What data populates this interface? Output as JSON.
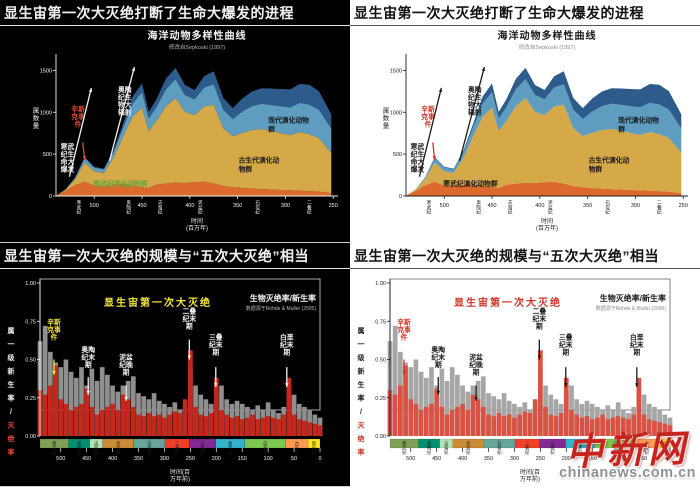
{
  "titles": {
    "top": "显生宙第一次大灭绝打断了生命大爆发的进程",
    "bottom": "显生宙第一次大灭绝的规模与“五次大灭绝”相当"
  },
  "watermark": {
    "logo": "中新网",
    "url": "chinanews.com.cn"
  },
  "themes": {
    "dark": {
      "bg": "#000000",
      "fg": "#f2f2f2",
      "muted": "#b8b8b8",
      "red": "#e2483a",
      "highlight": "#f2e33c",
      "green": "#63a83e",
      "ink": "#1a1a1a",
      "bar_grey": "#8f8f8f",
      "bar_red": "#c4271b",
      "frame": "#d0d0d0"
    },
    "light": {
      "bg": "#ffffff",
      "fg": "#1a1a1a",
      "muted": "#8a8a8a",
      "red": "#d03425",
      "highlight": "#d03425",
      "green": "#1a1a1a",
      "ink": "#1a1a1a",
      "bar_grey": "#a6a6a6",
      "bar_red": "#d85343",
      "frame": "#666666"
    }
  },
  "chart_data": [
    {
      "type": "area",
      "title": "海洋动物多样性曲线",
      "subtitle": "修改自Sepkoski (1997)",
      "ylabel": "属数量",
      "xlabel_lines": [
        "时间",
        "(百万年)"
      ],
      "xlim": [
        540,
        245
      ],
      "ylim": [
        0,
        1600
      ],
      "y_ticks": [
        0,
        500,
        1000,
        1500
      ],
      "x_ticks": [
        500,
        450,
        400,
        350,
        300,
        250
      ],
      "x_periods": [
        {
          "name": "寒武纪",
          "mid": 516
        },
        {
          "name": "奥陶纪",
          "mid": 464
        },
        {
          "name": "志留纪",
          "mid": 431
        },
        {
          "name": "泥盆纪",
          "mid": 389
        },
        {
          "name": "石炭纪",
          "mid": 329
        },
        {
          "name": "二叠纪",
          "mid": 275
        }
      ],
      "x": [
        540,
        530,
        520,
        510,
        500,
        490,
        480,
        470,
        460,
        450,
        443,
        435,
        425,
        415,
        405,
        395,
        385,
        375,
        365,
        355,
        345,
        335,
        325,
        315,
        305,
        295,
        285,
        275,
        265,
        252
      ],
      "series": [
        {
          "name": "寒武纪演化动物群",
          "color": "#dc6a2c",
          "values": [
            5,
            60,
            130,
            170,
            125,
            115,
            135,
            145,
            125,
            105,
            95,
            135,
            150,
            160,
            155,
            165,
            170,
            150,
            120,
            105,
            95,
            88,
            82,
            78,
            72,
            68,
            62,
            58,
            52,
            35
          ]
        },
        {
          "name": "古生代演化动物群",
          "color": "#d5a848",
          "values": [
            0,
            15,
            70,
            230,
            170,
            160,
            320,
            560,
            820,
            950,
            680,
            760,
            920,
            1010,
            850,
            800,
            900,
            940,
            690,
            610,
            660,
            700,
            720,
            700,
            680,
            660,
            700,
            680,
            640,
            480
          ]
        },
        {
          "name": "现代演化动物群(浅)",
          "color": "#5e9cc0",
          "values": [
            0,
            4,
            18,
            55,
            45,
            42,
            65,
            105,
            155,
            185,
            150,
            165,
            205,
            225,
            200,
            190,
            225,
            245,
            220,
            205,
            255,
            285,
            300,
            310,
            320,
            330,
            350,
            355,
            340,
            290
          ]
        },
        {
          "name": "现代演化动物群(深)",
          "color": "#2d5c8c",
          "values": [
            0,
            0,
            4,
            10,
            10,
            10,
            22,
            45,
            85,
            105,
            80,
            95,
            125,
            135,
            120,
            110,
            135,
            155,
            140,
            130,
            155,
            175,
            185,
            195,
            205,
            215,
            225,
            235,
            220,
            170
          ]
        }
      ],
      "annotations": [
        {
          "rows": [
            "辛斯",
            "克事",
            "件"
          ],
          "x": 517,
          "y": 1010,
          "color": "red",
          "arrow": {
            "x1": 512,
            "y1": 640,
            "x2": 510,
            "y2": 430
          }
        },
        {
          "rows": [
            "奥陶",
            "纪生",
            "物大",
            "辐射"
          ],
          "x": 468,
          "y": 1240,
          "color": "fg",
          "arrow": {
            "x1": 484,
            "y1": 420,
            "x2": 458,
            "y2": 1540
          }
        },
        {
          "rows": [
            "寒武",
            "纪生",
            "命大",
            "爆发"
          ],
          "x": 528,
          "y": 560,
          "color": "fg",
          "arrow": {
            "x1": 526,
            "y1": 230,
            "x2": 503,
            "y2": 1290
          }
        },
        {
          "text": "寒武纪演化动物群",
          "x": 501,
          "y": 120,
          "color": "green",
          "anchor": "start"
        },
        {
          "rows": [
            "古生代演化动",
            "物群"
          ],
          "x": 349,
          "y": 400,
          "color": "ink",
          "anchor": "start",
          "dy": 9
        },
        {
          "rows": [
            "现代演化动物",
            "群"
          ],
          "x": 318,
          "y": 880,
          "color": "ink",
          "anchor": "start",
          "dy": 9
        }
      ]
    },
    {
      "type": "bar",
      "title": "显生宙第一次大灭绝",
      "legend_title": "生物灭绝率/新生率",
      "legend_subtitle": "数据源于Rohde & Muller (2005)",
      "ylabel_main": "属一级新生率",
      "ylabel_red": "灭绝率",
      "xlabel_lines": [
        "时间(百",
        "万年前)"
      ],
      "xlim": [
        540,
        0
      ],
      "ylim": [
        0,
        1.05
      ],
      "reference_line": 0.17,
      "y_ticks": [
        {
          "label": "1.00",
          "v": 1
        },
        {
          "label": "0.75",
          "v": 0.75
        },
        {
          "label": "0.50",
          "v": 0.5
        },
        {
          "label": "0.25",
          "v": 0.25
        },
        {
          "label": "0.00",
          "v": 0
        }
      ],
      "x_ticks": [
        500,
        450,
        400,
        350,
        300,
        250,
        200,
        150,
        100,
        50,
        0
      ],
      "x": [
        540,
        530,
        520,
        510,
        500,
        490,
        480,
        470,
        460,
        450,
        440,
        430,
        420,
        410,
        400,
        390,
        380,
        370,
        360,
        350,
        340,
        330,
        320,
        310,
        300,
        290,
        280,
        270,
        260,
        250,
        240,
        230,
        220,
        210,
        200,
        190,
        180,
        170,
        160,
        150,
        140,
        130,
        120,
        110,
        100,
        90,
        80,
        70,
        60,
        50,
        40,
        30,
        20,
        10,
        0
      ],
      "series": [
        {
          "name": "新生率",
          "color_key": "bar_grey",
          "values": [
            0.62,
            0.72,
            0.55,
            0.48,
            0.45,
            0.5,
            0.42,
            0.38,
            0.45,
            0.33,
            0.44,
            0.36,
            0.45,
            0.4,
            0.33,
            0.29,
            0.33,
            0.36,
            0.39,
            0.28,
            0.26,
            0.24,
            0.28,
            0.23,
            0.21,
            0.19,
            0.22,
            0.17,
            0.2,
            0.44,
            0.33,
            0.27,
            0.24,
            0.21,
            0.29,
            0.33,
            0.24,
            0.21,
            0.23,
            0.21,
            0.19,
            0.17,
            0.2,
            0.17,
            0.22,
            0.17,
            0.15,
            0.19,
            0.33,
            0.27,
            0.21,
            0.19,
            0.17,
            0.14,
            0.12
          ]
        },
        {
          "name": "灭绝率",
          "color_key": "bar_red",
          "values": [
            0.3,
            0.27,
            0.33,
            0.46,
            0.24,
            0.21,
            0.17,
            0.19,
            0.21,
            0.31,
            0.19,
            0.14,
            0.17,
            0.19,
            0.21,
            0.17,
            0.27,
            0.24,
            0.19,
            0.14,
            0.13,
            0.15,
            0.13,
            0.14,
            0.12,
            0.14,
            0.16,
            0.15,
            0.24,
            0.56,
            0.19,
            0.14,
            0.13,
            0.15,
            0.38,
            0.17,
            0.14,
            0.12,
            0.13,
            0.11,
            0.12,
            0.14,
            0.11,
            0.12,
            0.13,
            0.12,
            0.11,
            0.14,
            0.38,
            0.14,
            0.11,
            0.1,
            0.09,
            0.08,
            0.07
          ]
        }
      ],
      "periods": [
        {
          "name": "寒武纪",
          "from": 541,
          "to": 485,
          "color": "#7FA056"
        },
        {
          "name": "奥陶纪",
          "from": 485,
          "to": 444,
          "color": "#009270"
        },
        {
          "name": "志留纪",
          "from": 444,
          "to": 419,
          "color": "#B3E1B6"
        },
        {
          "name": "泥盆纪",
          "from": 419,
          "to": 359,
          "color": "#CB8C37"
        },
        {
          "name": "石炭纪",
          "from": 359,
          "to": 299,
          "color": "#67A599"
        },
        {
          "name": "二叠纪",
          "from": 299,
          "to": 252,
          "color": "#F04028"
        },
        {
          "name": "三叠纪",
          "from": 252,
          "to": 201,
          "color": "#812B92"
        },
        {
          "name": "侏罗纪",
          "from": 201,
          "to": 145,
          "color": "#34B2C9"
        },
        {
          "name": "白垩纪",
          "from": 145,
          "to": 66,
          "color": "#7FC64E"
        },
        {
          "name": "古近纪",
          "from": 66,
          "to": 23,
          "color": "#FD9A52"
        },
        {
          "name": "新近纪",
          "from": 23,
          "to": 0,
          "color": "#FFE619"
        }
      ],
      "annotations": [
        {
          "rows": [
            "辛斯",
            "克事",
            "件"
          ],
          "x": 513,
          "y": 0.73,
          "color": "highlight",
          "arrow": {
            "x1": 513,
            "y1": 0.5,
            "x2": 513,
            "y2": 0.4
          }
        },
        {
          "rows": [
            "奥陶",
            "纪末",
            "期"
          ],
          "x": 447,
          "y": 0.55,
          "color": "fg",
          "arrow": {
            "x1": 447,
            "y1": 0.385,
            "x2": 447,
            "y2": 0.27
          }
        },
        {
          "rows": [
            "泥盆",
            "纪晚",
            "期"
          ],
          "x": 374,
          "y": 0.5,
          "color": "fg",
          "arrow": {
            "x1": 374,
            "y1": 0.33,
            "x2": 374,
            "y2": 0.23
          }
        },
        {
          "rows": [
            "二叠",
            "纪末",
            "期"
          ],
          "x": 252,
          "y": 0.8,
          "color": "fg",
          "arrow": {
            "x1": 252,
            "y1": 0.63,
            "x2": 252,
            "y2": 0.5
          }
        },
        {
          "rows": [
            "三叠",
            "纪末",
            "期"
          ],
          "x": 201,
          "y": 0.63,
          "color": "fg",
          "arrow": {
            "x1": 201,
            "y1": 0.45,
            "x2": 201,
            "y2": 0.32
          }
        },
        {
          "rows": [
            "白垩",
            "纪末",
            "期"
          ],
          "x": 64,
          "y": 0.63,
          "color": "fg",
          "arrow": {
            "x1": 64,
            "y1": 0.45,
            "x2": 64,
            "y2": 0.32
          }
        }
      ]
    }
  ]
}
